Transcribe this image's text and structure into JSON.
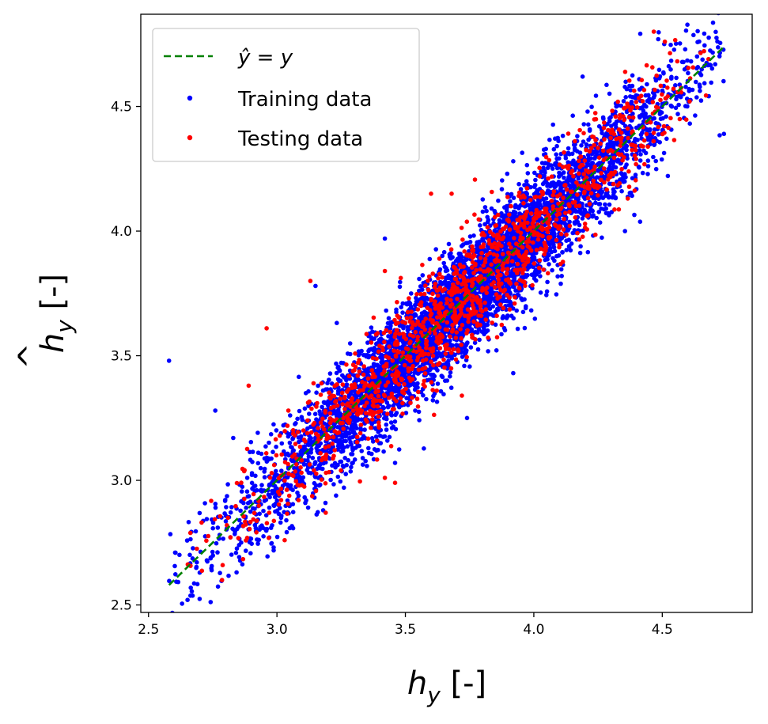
{
  "chart_data": {
    "type": "scatter",
    "title": "",
    "xlabel": "h_y [-]",
    "ylabel": "ĥ_y [-]",
    "x_label_parts": {
      "symbol": "h",
      "sub": "y",
      "unit": " [-]"
    },
    "y_label_parts": {
      "symbol": "h",
      "hat": "^",
      "sub": "y",
      "unit": " [-]"
    },
    "xlim": [
      2.47,
      4.85
    ],
    "ylim": [
      2.47,
      4.87
    ],
    "xticks": [
      2.5,
      3.0,
      3.5,
      4.0,
      4.5
    ],
    "yticks": [
      2.5,
      3.0,
      3.5,
      4.0,
      4.5
    ],
    "xtick_labels": [
      "2.5",
      "3.0",
      "3.5",
      "4.0",
      "4.5"
    ],
    "ytick_labels": [
      "2.5",
      "3.0",
      "3.5",
      "4.0",
      "4.5"
    ],
    "grid": false,
    "legend_position": "upper-left",
    "reference_line": {
      "label": "ŷ = y",
      "label_parts": {
        "lhs": "ŷ",
        "rhs": " = y"
      },
      "style": "dashed",
      "color": "#008000",
      "x": [
        2.58,
        4.74
      ],
      "y": [
        2.58,
        4.74
      ]
    },
    "series": [
      {
        "name": "Training data",
        "color": "#0000ff",
        "n_points": 5200,
        "x_range": [
          2.58,
          4.74
        ],
        "residual_sd": 0.11,
        "outliers": [
          [
            2.58,
            3.48
          ],
          [
            2.76,
            3.28
          ],
          [
            3.15,
            3.78
          ],
          [
            3.42,
            3.97
          ],
          [
            4.19,
            4.62
          ],
          [
            4.74,
            4.39
          ],
          [
            4.36,
            4.49
          ],
          [
            3.74,
            3.25
          ],
          [
            3.46,
            3.07
          ],
          [
            3.39,
            3.16
          ],
          [
            3.92,
            3.43
          ],
          [
            3.18,
            2.88
          ],
          [
            2.83,
            3.17
          ],
          [
            2.88,
            2.89
          ],
          [
            3.92,
            4.28
          ]
        ]
      },
      {
        "name": "Testing data",
        "color": "#ff0000",
        "n_points": 1300,
        "x_range": [
          2.65,
          4.68
        ],
        "residual_sd": 0.11,
        "outliers": [
          [
            2.96,
            3.61
          ],
          [
            3.03,
            2.76
          ],
          [
            2.97,
            2.87
          ],
          [
            3.19,
            2.87
          ],
          [
            3.42,
            3.84
          ],
          [
            3.68,
            4.15
          ],
          [
            3.72,
            3.34
          ],
          [
            3.46,
            2.99
          ],
          [
            4.51,
            4.76
          ],
          [
            4.68,
            4.69
          ],
          [
            2.89,
            3.38
          ],
          [
            3.13,
            3.8
          ],
          [
            3.42,
            3.01
          ],
          [
            3.6,
            4.15
          ]
        ]
      }
    ]
  }
}
